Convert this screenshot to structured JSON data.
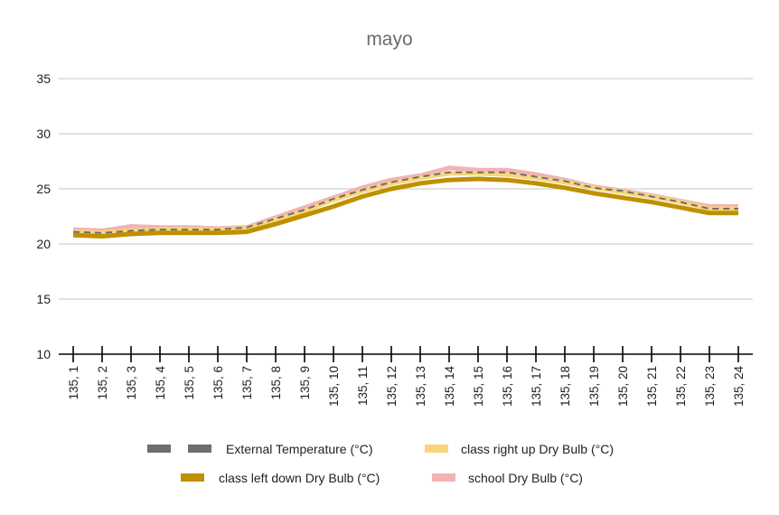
{
  "chart_data": {
    "type": "line",
    "title": "mayo",
    "xlabel": "",
    "ylabel": "",
    "ylim": [
      10,
      35
    ],
    "yticks": [
      10,
      15,
      20,
      25,
      30,
      35
    ],
    "grid": true,
    "legend_position": "bottom",
    "categories": [
      "135, 1",
      "135, 2",
      "135, 3",
      "135, 4",
      "135, 5",
      "135, 6",
      "135, 7",
      "135, 8",
      "135, 9",
      "135, 10",
      "135, 11",
      "135, 12",
      "135, 13",
      "135, 14",
      "135, 15",
      "135, 16",
      "135, 17",
      "135, 18",
      "135, 19",
      "135, 20",
      "135, 21",
      "135, 22",
      "135, 23",
      "135, 24"
    ],
    "series": [
      {
        "name": "school Dry Bulb (°C)",
        "color": "#f2b3b3",
        "style": "solid-thick",
        "values": [
          21.3,
          21.2,
          21.6,
          21.5,
          21.5,
          21.4,
          21.5,
          22.4,
          23.3,
          24.2,
          25.1,
          25.8,
          26.2,
          26.9,
          26.7,
          26.7,
          26.3,
          25.8,
          25.2,
          24.8,
          24.4,
          23.9,
          23.4,
          23.4
        ]
      },
      {
        "name": "class right up Dry Bulb (°C)",
        "color": "#f7d67a",
        "style": "solid-thick",
        "values": [
          21.1,
          21.0,
          21.2,
          21.3,
          21.3,
          21.3,
          21.4,
          22.2,
          23.0,
          24.0,
          24.8,
          25.5,
          26.0,
          26.4,
          26.4,
          26.3,
          26.0,
          25.6,
          25.1,
          24.7,
          24.3,
          23.8,
          23.2,
          23.2
        ]
      },
      {
        "name": "class left down Dry Bulb (°C)",
        "color": "#bf9000",
        "style": "solid-thick",
        "values": [
          20.8,
          20.7,
          20.9,
          21.0,
          21.0,
          21.0,
          21.1,
          21.8,
          22.6,
          23.4,
          24.3,
          25.0,
          25.5,
          25.8,
          25.9,
          25.8,
          25.5,
          25.1,
          24.6,
          24.2,
          23.8,
          23.3,
          22.8,
          22.8
        ]
      },
      {
        "name": "External Temperature (°C)",
        "color": "#6e6e6e",
        "style": "dashed",
        "values": [
          21.1,
          21.0,
          21.2,
          21.3,
          21.3,
          21.3,
          21.5,
          22.3,
          23.1,
          24.1,
          24.9,
          25.6,
          26.1,
          26.5,
          26.5,
          26.5,
          26.1,
          25.7,
          25.1,
          24.8,
          24.3,
          23.8,
          23.2,
          23.2
        ]
      }
    ],
    "legend": [
      [
        "External Temperature (°C)",
        "class right up Dry Bulb (°C)"
      ],
      [
        "class left down Dry Bulb (°C)",
        "school Dry Bulb (°C)"
      ]
    ]
  }
}
